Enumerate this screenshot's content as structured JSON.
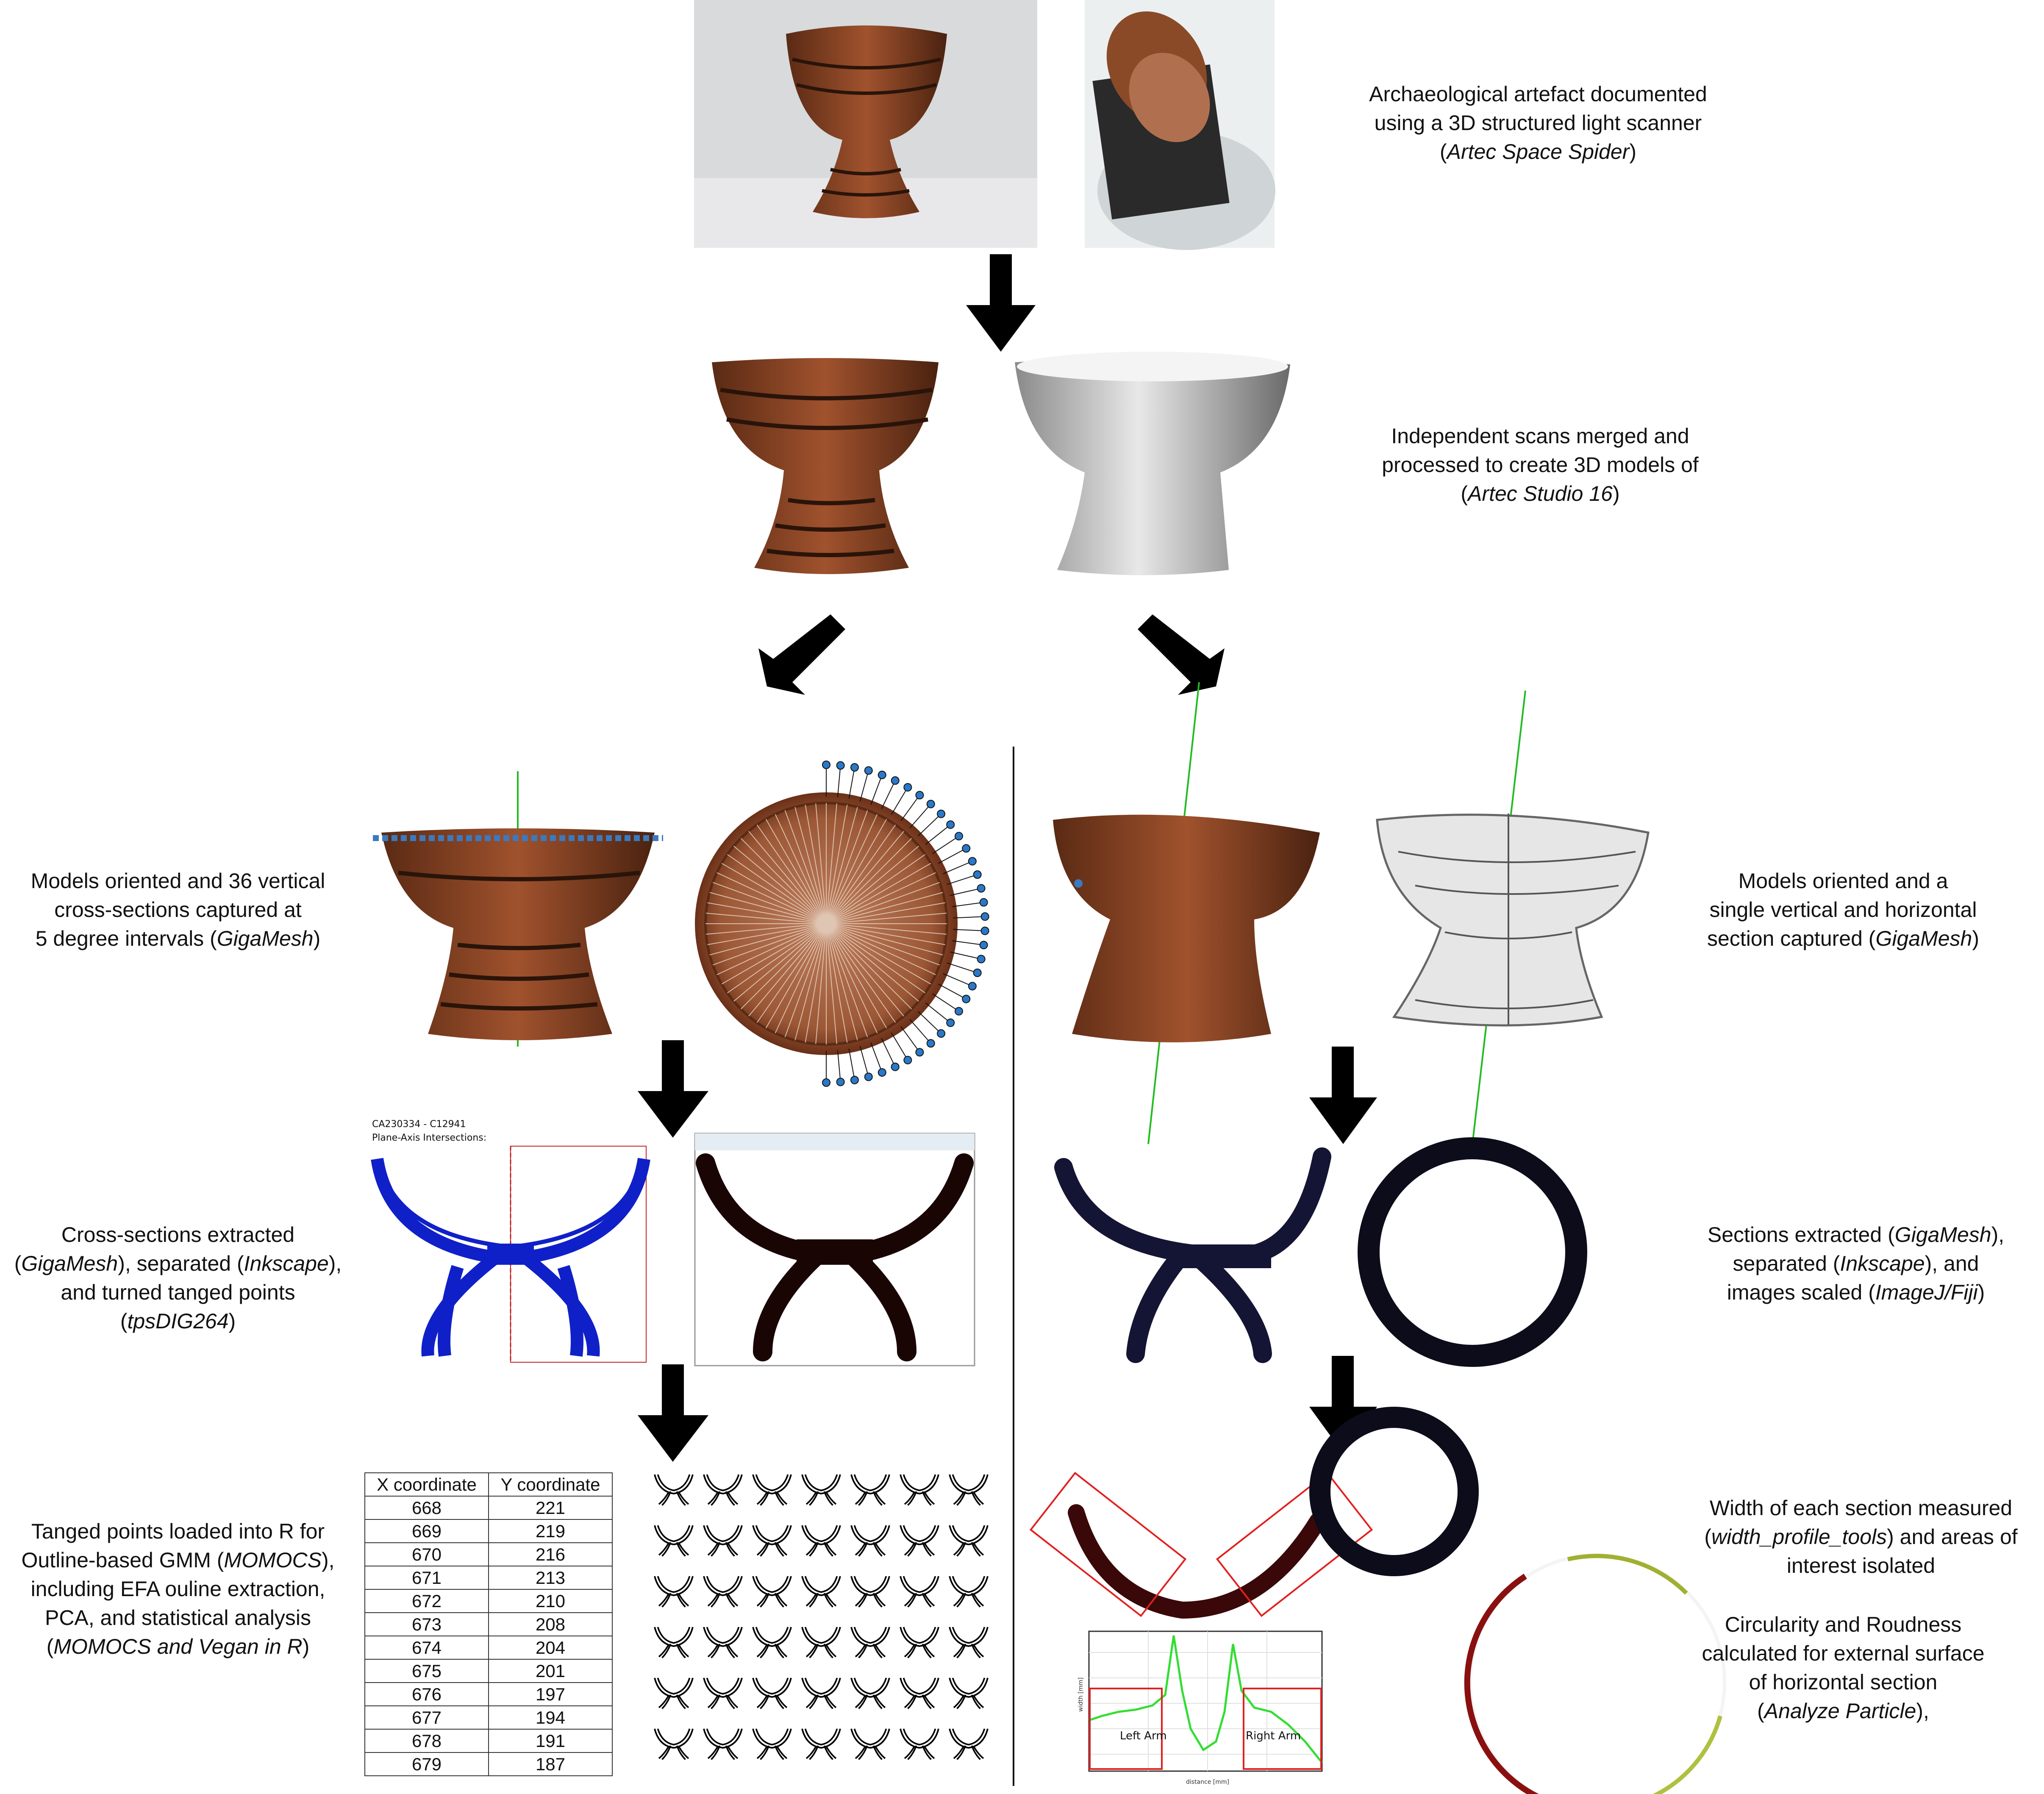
{
  "captions": {
    "scan": {
      "line1": "Archaeological artefact documented",
      "line2": "using a 3D structured light scanner",
      "line3_pre": "(",
      "line3_em": "Artec Space Spider",
      "line3_post": ")"
    },
    "merge": {
      "line1": "Independent scans merged and",
      "line2": "processed to create 3D models of",
      "line3_pre": "(",
      "line3_em": "Artec Studio 16",
      "line3_post": ")"
    },
    "left_orient": {
      "line1": "Models oriented and 36 vertical",
      "line2": "cross-sections captured at",
      "line3_pre": "5 degree intervals (",
      "line3_em": "GigaMesh",
      "line3_post": ")"
    },
    "right_orient": {
      "line1": "Models oriented and a",
      "line2": "single vertical and horizontal",
      "line3_pre": "section captured (",
      "line3_em": "GigaMesh",
      "line3_post": ")"
    },
    "left_extract": {
      "line1": "Cross-sections extracted",
      "line2_pre": "(",
      "line2_em1": "GigaMesh",
      "line2_mid": "), separated (",
      "line2_em2": "Inkscape",
      "line2_post": "),",
      "line3": "and turned tanged points",
      "line4_pre": "(",
      "line4_em": "tpsDIG264",
      "line4_post": ")"
    },
    "right_extract": {
      "line1_pre": "Sections extracted (",
      "line1_em": "GigaMesh",
      "line1_post": "),",
      "line2_pre": "separated (",
      "line2_em": "Inkscape",
      "line2_post": "),  and",
      "line3_pre": "images scaled (",
      "line3_em": "ImageJ/Fiji",
      "line3_post": ")"
    },
    "left_gmm": {
      "line1": "Tanged points loaded into R for",
      "line2_pre": "Outline-based GMM (",
      "line2_em": "MOMOCS",
      "line2_post": "),",
      "line3": "including EFA ouline extraction,",
      "line4": "PCA, and statistical analysis",
      "line5_pre": "(",
      "line5_em": "MOMOCS and Vegan in R",
      "line5_post": ")"
    },
    "right_width": {
      "line1": "Width of each section measured",
      "line2_pre": "(",
      "line2_em": "width_profile_tools",
      "line2_post": ") and areas of",
      "line3": "interest isolated"
    },
    "right_circ": {
      "line1": "Circularity and Roudness",
      "line2": "calculated for external surface",
      "line3": "of horizontal section",
      "line4_pre": "(",
      "line4_em": "Analyze Particle",
      "line4_post": "),"
    }
  },
  "screenshot_labels": {
    "id": "CA230334 - C12941",
    "subtitle": "Plane-Axis Intersections:"
  },
  "coord_table": {
    "headers": [
      "X coordinate",
      "Y coordinate"
    ],
    "rows": [
      [
        "668",
        "221"
      ],
      [
        "669",
        "219"
      ],
      [
        "670",
        "216"
      ],
      [
        "671",
        "213"
      ],
      [
        "672",
        "210"
      ],
      [
        "673",
        "208"
      ],
      [
        "674",
        "204"
      ],
      [
        "675",
        "201"
      ],
      [
        "676",
        "197"
      ],
      [
        "677",
        "194"
      ],
      [
        "678",
        "191"
      ],
      [
        "679",
        "187"
      ]
    ]
  },
  "width_plot": {
    "left_label": "Left Arm",
    "right_label": "Right Arm",
    "ylabel": "width [mm]",
    "xlabel": "distance [mm]",
    "yticks": [
      "14",
      "12",
      "10",
      "8",
      "6"
    ],
    "xticks": [
      "0",
      "50",
      "100",
      "150",
      "200"
    ]
  },
  "colors": {
    "arrow": "#000000",
    "section_blue": "#1020c8",
    "section_dark": "#1a0505",
    "red_box": "#e02020",
    "axis_green": "#22bb22",
    "plot_line": "#33dd33"
  }
}
